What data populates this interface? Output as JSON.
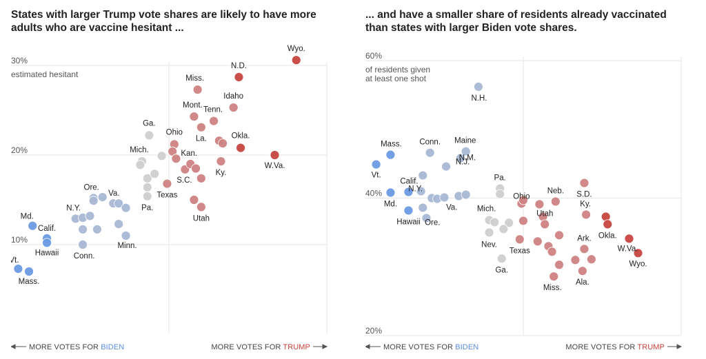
{
  "colors": {
    "biden_strong": "#6b9ae3",
    "biden_lean": "#a9b8d4",
    "neutral": "#cfcfcf",
    "trump_lean": "#cd8282",
    "trump_strong": "#c7443f",
    "biden_text": "#5b8fdc",
    "trump_text": "#c9403a",
    "grid": "#e6e6e6"
  },
  "axis_text": {
    "left_prefix": "MORE VOTES FOR ",
    "left_party": "BIDEN",
    "right_prefix": "MORE VOTES FOR ",
    "right_party": "TRUMP"
  },
  "chart_data": [
    {
      "type": "scatter",
      "title": "States with larger Trump vote shares are likely to have more adults who are vaccine hesitant ...",
      "title_lines": [
        "States with larger Trump vote shares are likely to have more",
        "adults who are vaccine hesitant ..."
      ],
      "y_label_lines": [
        "estimated hesitant"
      ],
      "y_ticks": [
        {
          "value": 10,
          "label": "10%"
        },
        {
          "value": 20,
          "label": "20%"
        },
        {
          "value": 30,
          "label": "30%"
        }
      ],
      "x_range": [
        -0.4,
        0.48
      ],
      "ylim": [
        0,
        32
      ],
      "grid": true,
      "points": [
        {
          "name": "Vt.",
          "x": -0.38,
          "y": 7.3,
          "group": "biden_strong",
          "label": true
        },
        {
          "name": "Mass.",
          "x": -0.35,
          "y": 7.0,
          "group": "biden_strong",
          "label": true
        },
        {
          "name": "Md.",
          "x": -0.34,
          "y": 12.1,
          "group": "biden_strong",
          "label": true
        },
        {
          "name": "Calif.",
          "x": -0.3,
          "y": 10.7,
          "group": "biden_strong",
          "label": true
        },
        {
          "name": "Hawaii",
          "x": -0.3,
          "y": 10.2,
          "group": "biden_strong",
          "label": true
        },
        {
          "name": "Conn.",
          "x": -0.2,
          "y": 10.0,
          "group": "biden_lean",
          "label": true
        },
        {
          "name": "N.Y.",
          "x": -0.22,
          "y": 12.9,
          "group": "biden_lean",
          "label": true
        },
        {
          "name": "",
          "x": -0.2,
          "y": 13.0,
          "group": "biden_lean",
          "label": false
        },
        {
          "name": "",
          "x": -0.18,
          "y": 13.2,
          "group": "biden_lean",
          "label": false
        },
        {
          "name": "",
          "x": -0.2,
          "y": 11.7,
          "group": "biden_lean",
          "label": false
        },
        {
          "name": "",
          "x": -0.16,
          "y": 11.7,
          "group": "biden_lean",
          "label": false
        },
        {
          "name": "Ore.",
          "x": -0.17,
          "y": 15.2,
          "group": "biden_lean",
          "label": true
        },
        {
          "name": "",
          "x": -0.17,
          "y": 14.9,
          "group": "biden_lean",
          "label": false
        },
        {
          "name": "",
          "x": -0.145,
          "y": 15.3,
          "group": "biden_lean",
          "label": false
        },
        {
          "name": "Va.",
          "x": -0.115,
          "y": 14.6,
          "group": "biden_lean",
          "label": true
        },
        {
          "name": "",
          "x": -0.1,
          "y": 14.6,
          "group": "biden_lean",
          "label": false
        },
        {
          "name": "",
          "x": -0.08,
          "y": 14.1,
          "group": "biden_lean",
          "label": false
        },
        {
          "name": "",
          "x": -0.1,
          "y": 12.3,
          "group": "biden_lean",
          "label": false
        },
        {
          "name": "Minn.",
          "x": -0.08,
          "y": 11.0,
          "group": "biden_lean",
          "label": true
        },
        {
          "name": "Mich.",
          "x": -0.035,
          "y": 19.3,
          "group": "neutral",
          "label": true
        },
        {
          "name": "",
          "x": -0.04,
          "y": 18.9,
          "group": "neutral",
          "label": false
        },
        {
          "name": "Ga.",
          "x": -0.015,
          "y": 22.2,
          "group": "neutral",
          "label": true
        },
        {
          "name": "",
          "x": -0.02,
          "y": 17.4,
          "group": "neutral",
          "label": false
        },
        {
          "name": "",
          "x": 0.0,
          "y": 17.9,
          "group": "neutral",
          "label": false
        },
        {
          "name": "",
          "x": -0.02,
          "y": 16.4,
          "group": "neutral",
          "label": false
        },
        {
          "name": "Pa.",
          "x": -0.02,
          "y": 15.4,
          "group": "neutral",
          "label": true
        },
        {
          "name": "",
          "x": 0.02,
          "y": 19.9,
          "group": "neutral",
          "label": false
        },
        {
          "name": "Texas",
          "x": 0.035,
          "y": 16.8,
          "group": "trump_lean",
          "label": true
        },
        {
          "name": "Ohio",
          "x": 0.055,
          "y": 21.2,
          "group": "trump_lean",
          "label": true
        },
        {
          "name": "",
          "x": 0.05,
          "y": 20.4,
          "group": "trump_lean",
          "label": false
        },
        {
          "name": "",
          "x": 0.06,
          "y": 19.6,
          "group": "trump_lean",
          "label": false
        },
        {
          "name": "S.C.",
          "x": 0.085,
          "y": 18.4,
          "group": "trump_lean",
          "label": true
        },
        {
          "name": "Kan.",
          "x": 0.1,
          "y": 19.0,
          "group": "trump_lean",
          "label": true
        },
        {
          "name": "",
          "x": 0.115,
          "y": 18.5,
          "group": "trump_lean",
          "label": false
        },
        {
          "name": "",
          "x": 0.13,
          "y": 17.4,
          "group": "trump_lean",
          "label": false
        },
        {
          "name": "Utah",
          "x": 0.13,
          "y": 14.2,
          "group": "trump_lean",
          "label": true
        },
        {
          "name": "",
          "x": 0.11,
          "y": 15.0,
          "group": "trump_lean",
          "label": false
        },
        {
          "name": "Miss.",
          "x": 0.12,
          "y": 27.3,
          "group": "trump_lean",
          "label": true
        },
        {
          "name": "Mont.",
          "x": 0.11,
          "y": 24.3,
          "group": "trump_lean",
          "label": true
        },
        {
          "name": "La.",
          "x": 0.13,
          "y": 23.1,
          "group": "trump_lean",
          "label": true
        },
        {
          "name": "Tenn.",
          "x": 0.165,
          "y": 23.8,
          "group": "trump_lean",
          "label": true
        },
        {
          "name": "",
          "x": 0.18,
          "y": 21.6,
          "group": "trump_lean",
          "label": false
        },
        {
          "name": "",
          "x": 0.19,
          "y": 21.3,
          "group": "trump_lean",
          "label": false
        },
        {
          "name": "Ky.",
          "x": 0.185,
          "y": 19.3,
          "group": "trump_lean",
          "label": true
        },
        {
          "name": "Idaho",
          "x": 0.22,
          "y": 25.3,
          "group": "trump_lean",
          "label": true
        },
        {
          "name": "N.D.",
          "x": 0.235,
          "y": 28.7,
          "group": "trump_strong",
          "label": true
        },
        {
          "name": "Okla.",
          "x": 0.24,
          "y": 20.8,
          "group": "trump_strong",
          "label": true
        },
        {
          "name": "W.Va.",
          "x": 0.335,
          "y": 20.0,
          "group": "trump_strong",
          "label": true
        },
        {
          "name": "Wyo.",
          "x": 0.395,
          "y": 30.6,
          "group": "trump_strong",
          "label": true
        }
      ]
    },
    {
      "type": "scatter",
      "title": "... and have a smaller share of residents already vaccinated than states with larger Biden vote shares.",
      "title_lines": [
        "... and have a smaller share of residents already vaccinated",
        "than states with larger Biden vote shares."
      ],
      "y_label_lines": [
        "of residents given",
        "at least one shot"
      ],
      "y_ticks": [
        {
          "value": 20,
          "label": "20%"
        },
        {
          "value": 40,
          "label": "40%"
        },
        {
          "value": 60,
          "label": "60%"
        }
      ],
      "x_range": [
        -0.4,
        0.48
      ],
      "ylim": [
        20,
        60
      ],
      "grid": true,
      "points": [
        {
          "name": "N.H.",
          "x": -0.085,
          "y": 56.2,
          "group": "biden_lean",
          "label": true
        },
        {
          "name": "Vt.",
          "x": -0.37,
          "y": 44.9,
          "group": "biden_strong",
          "label": true
        },
        {
          "name": "Mass.",
          "x": -0.33,
          "y": 46.3,
          "group": "biden_strong",
          "label": true
        },
        {
          "name": "Calif.",
          "x": -0.28,
          "y": 40.9,
          "group": "biden_strong",
          "label": true
        },
        {
          "name": "Md.",
          "x": -0.33,
          "y": 40.8,
          "group": "biden_strong",
          "label": true
        },
        {
          "name": "Hawaii",
          "x": -0.28,
          "y": 38.2,
          "group": "biden_strong",
          "label": true
        },
        {
          "name": "Conn.",
          "x": -0.22,
          "y": 46.6,
          "group": "biden_lean",
          "label": true
        },
        {
          "name": "Maine",
          "x": -0.12,
          "y": 46.8,
          "group": "biden_lean",
          "label": true
        },
        {
          "name": "N.M.",
          "x": -0.135,
          "y": 45.8,
          "group": "biden_lean",
          "label": false
        },
        {
          "name": "N.J.",
          "x": -0.175,
          "y": 44.6,
          "group": "biden_lean",
          "label": true
        },
        {
          "name": "",
          "x": -0.24,
          "y": 43.3,
          "group": "biden_lean",
          "label": false
        },
        {
          "name": "N.Y.",
          "x": -0.245,
          "y": 41.0,
          "group": "biden_lean",
          "label": true
        },
        {
          "name": "Ore.",
          "x": -0.24,
          "y": 38.6,
          "group": "biden_lean",
          "label": true
        },
        {
          "name": "",
          "x": -0.215,
          "y": 40.0,
          "group": "biden_lean",
          "label": false
        },
        {
          "name": "",
          "x": -0.2,
          "y": 39.9,
          "group": "biden_lean",
          "label": false
        },
        {
          "name": "",
          "x": -0.18,
          "y": 40.1,
          "group": "biden_lean",
          "label": false
        },
        {
          "name": "",
          "x": -0.23,
          "y": 37.1,
          "group": "biden_lean",
          "label": false
        },
        {
          "name": "Va.",
          "x": -0.14,
          "y": 40.3,
          "group": "biden_lean",
          "label": true
        },
        {
          "name": "",
          "x": -0.12,
          "y": 40.5,
          "group": "biden_lean",
          "label": false
        },
        {
          "name": "Pa.",
          "x": -0.025,
          "y": 41.4,
          "group": "neutral",
          "label": true
        },
        {
          "name": "",
          "x": -0.025,
          "y": 40.6,
          "group": "neutral",
          "label": false
        },
        {
          "name": "Mich.",
          "x": -0.055,
          "y": 36.8,
          "group": "neutral",
          "label": false
        },
        {
          "name": "",
          "x": -0.04,
          "y": 36.5,
          "group": "neutral",
          "label": false
        },
        {
          "name": "Nev.",
          "x": -0.055,
          "y": 35.0,
          "group": "neutral",
          "label": true
        },
        {
          "name": "",
          "x": 0.0,
          "y": 36.4,
          "group": "neutral",
          "label": false
        },
        {
          "name": "",
          "x": -0.015,
          "y": 35.5,
          "group": "neutral",
          "label": false
        },
        {
          "name": "Ga.",
          "x": -0.02,
          "y": 31.2,
          "group": "neutral",
          "label": true
        },
        {
          "name": "Ohio",
          "x": 0.035,
          "y": 39.2,
          "group": "trump_lean",
          "label": false
        },
        {
          "name": "",
          "x": 0.04,
          "y": 39.7,
          "group": "trump_lean",
          "label": false
        },
        {
          "name": "Texas",
          "x": 0.03,
          "y": 34.0,
          "group": "trump_lean",
          "label": true
        },
        {
          "name": "",
          "x": 0.04,
          "y": 36.7,
          "group": "trump_lean",
          "label": false
        },
        {
          "name": "",
          "x": 0.085,
          "y": 39.1,
          "group": "trump_lean",
          "label": false
        },
        {
          "name": "",
          "x": 0.095,
          "y": 37.3,
          "group": "trump_lean",
          "label": false
        },
        {
          "name": "Neb.",
          "x": 0.13,
          "y": 39.5,
          "group": "trump_lean",
          "label": true
        },
        {
          "name": "Utah",
          "x": 0.1,
          "y": 36.2,
          "group": "trump_lean",
          "label": true
        },
        {
          "name": "",
          "x": 0.08,
          "y": 33.7,
          "group": "trump_lean",
          "label": false
        },
        {
          "name": "",
          "x": 0.11,
          "y": 33.0,
          "group": "trump_lean",
          "label": false
        },
        {
          "name": "",
          "x": 0.12,
          "y": 32.2,
          "group": "trump_lean",
          "label": false
        },
        {
          "name": "",
          "x": 0.14,
          "y": 30.3,
          "group": "trump_lean",
          "label": false
        },
        {
          "name": "Miss.",
          "x": 0.125,
          "y": 28.6,
          "group": "trump_lean",
          "label": true
        },
        {
          "name": "",
          "x": 0.14,
          "y": 34.6,
          "group": "trump_lean",
          "label": false
        },
        {
          "name": "S.D.",
          "x": 0.21,
          "y": 42.2,
          "group": "trump_lean",
          "label": true
        },
        {
          "name": "Ky.",
          "x": 0.215,
          "y": 37.6,
          "group": "trump_lean",
          "label": true
        },
        {
          "name": "Ark.",
          "x": 0.21,
          "y": 32.6,
          "group": "trump_lean",
          "label": true
        },
        {
          "name": "",
          "x": 0.185,
          "y": 31.0,
          "group": "trump_lean",
          "label": false
        },
        {
          "name": "",
          "x": 0.23,
          "y": 31.1,
          "group": "trump_lean",
          "label": false
        },
        {
          "name": "Ala.",
          "x": 0.205,
          "y": 29.4,
          "group": "trump_lean",
          "label": true
        },
        {
          "name": "",
          "x": 0.27,
          "y": 37.3,
          "group": "trump_strong",
          "label": false
        },
        {
          "name": "Okla.",
          "x": 0.275,
          "y": 36.2,
          "group": "trump_strong",
          "label": true
        },
        {
          "name": "W.Va.",
          "x": 0.335,
          "y": 34.1,
          "group": "trump_strong",
          "label": true
        },
        {
          "name": "Wyo.",
          "x": 0.36,
          "y": 32.0,
          "group": "trump_strong",
          "label": true
        }
      ]
    }
  ]
}
